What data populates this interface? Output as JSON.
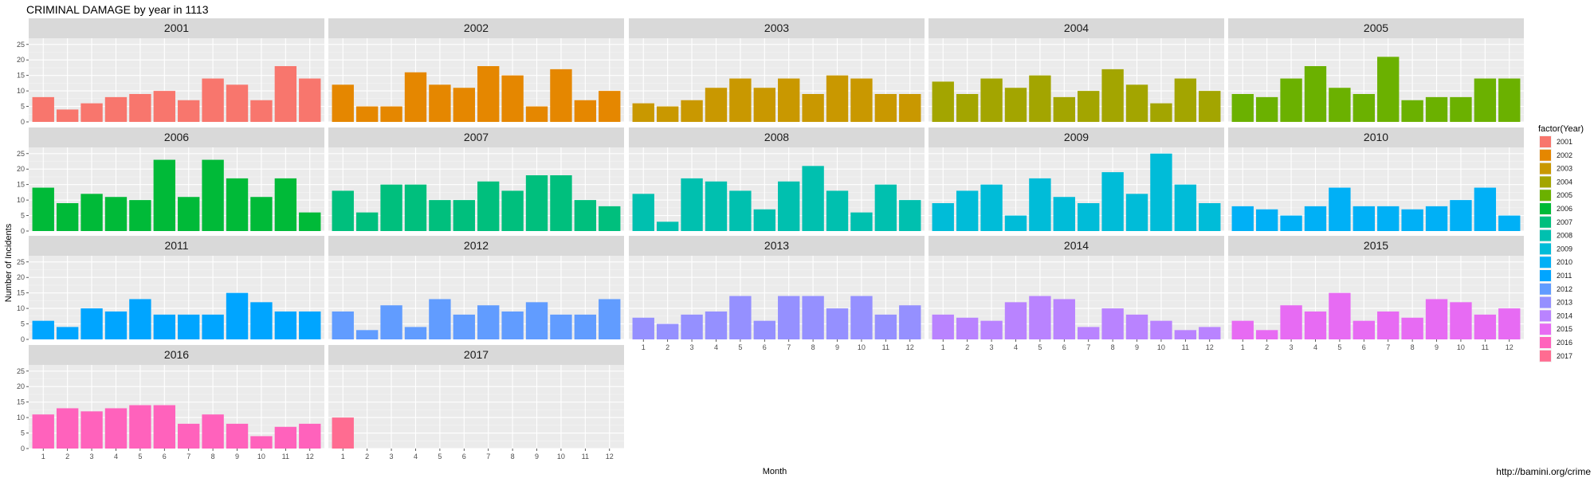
{
  "chart_data": {
    "type": "bar",
    "title": "CRIMINAL DAMAGE by year in 1113",
    "xlabel": "Month",
    "ylabel": "Number of Incidents",
    "caption": "http://bamini.org/crime",
    "legend_title": "factor(Year)",
    "legend_position": "right",
    "grid": true,
    "ylim": [
      0,
      27
    ],
    "y_ticks": [
      "0",
      "5",
      "10",
      "15",
      "20",
      "25"
    ],
    "x_ticks": [
      "1",
      "2",
      "3",
      "4",
      "5",
      "6",
      "7",
      "8",
      "9",
      "10",
      "11",
      "12"
    ],
    "colors": {
      "2001": "#F8766D",
      "2002": "#E58700",
      "2003": "#C99800",
      "2004": "#A3A500",
      "2005": "#6BB100",
      "2006": "#00BA38",
      "2007": "#00BF7D",
      "2008": "#00C0AF",
      "2009": "#00BCD8",
      "2010": "#00B0F6",
      "2011": "#00A5FF",
      "2012": "#619CFF",
      "2013": "#9590FF",
      "2014": "#B983FF",
      "2015": "#E76BF3",
      "2016": "#FF62BC",
      "2017": "#FF6C91"
    },
    "panels": [
      {
        "year": "2001",
        "values": [
          8,
          4,
          6,
          8,
          9,
          10,
          7,
          14,
          12,
          7,
          18,
          14
        ]
      },
      {
        "year": "2002",
        "values": [
          12,
          5,
          5,
          16,
          12,
          11,
          18,
          15,
          5,
          17,
          7,
          10
        ]
      },
      {
        "year": "2003",
        "values": [
          6,
          5,
          7,
          11,
          14,
          11,
          14,
          9,
          15,
          14,
          9,
          9
        ]
      },
      {
        "year": "2004",
        "values": [
          13,
          9,
          14,
          11,
          15,
          8,
          10,
          17,
          12,
          6,
          14,
          10
        ]
      },
      {
        "year": "2005",
        "values": [
          9,
          8,
          14,
          18,
          11,
          9,
          21,
          7,
          8,
          8,
          14,
          14
        ]
      },
      {
        "year": "2006",
        "values": [
          14,
          9,
          12,
          11,
          10,
          23,
          11,
          23,
          17,
          11,
          17,
          6
        ]
      },
      {
        "year": "2007",
        "values": [
          13,
          6,
          15,
          15,
          10,
          10,
          16,
          13,
          18,
          18,
          10,
          8
        ]
      },
      {
        "year": "2008",
        "values": [
          12,
          3,
          17,
          16,
          13,
          7,
          16,
          21,
          13,
          6,
          15,
          10
        ]
      },
      {
        "year": "2009",
        "values": [
          9,
          13,
          15,
          5,
          17,
          11,
          9,
          19,
          12,
          25,
          15,
          9
        ]
      },
      {
        "year": "2010",
        "values": [
          8,
          7,
          5,
          8,
          14,
          8,
          8,
          7,
          8,
          10,
          14,
          5
        ]
      },
      {
        "year": "2011",
        "values": [
          6,
          4,
          10,
          9,
          13,
          8,
          8,
          8,
          15,
          12,
          9,
          9
        ]
      },
      {
        "year": "2012",
        "values": [
          9,
          3,
          11,
          4,
          13,
          8,
          11,
          9,
          12,
          8,
          8,
          13
        ]
      },
      {
        "year": "2013",
        "values": [
          7,
          5,
          8,
          9,
          14,
          6,
          14,
          14,
          10,
          14,
          8,
          11
        ]
      },
      {
        "year": "2014",
        "values": [
          8,
          7,
          6,
          12,
          14,
          13,
          4,
          10,
          8,
          6,
          3,
          4
        ]
      },
      {
        "year": "2015",
        "values": [
          6,
          3,
          11,
          9,
          15,
          6,
          9,
          7,
          13,
          12,
          8,
          10
        ]
      },
      {
        "year": "2016",
        "values": [
          11,
          13,
          12,
          13,
          14,
          14,
          8,
          11,
          8,
          4,
          7,
          8
        ]
      },
      {
        "year": "2017",
        "values": [
          10,
          null,
          null,
          null,
          null,
          null,
          null,
          null,
          null,
          null,
          null,
          null
        ]
      }
    ]
  }
}
